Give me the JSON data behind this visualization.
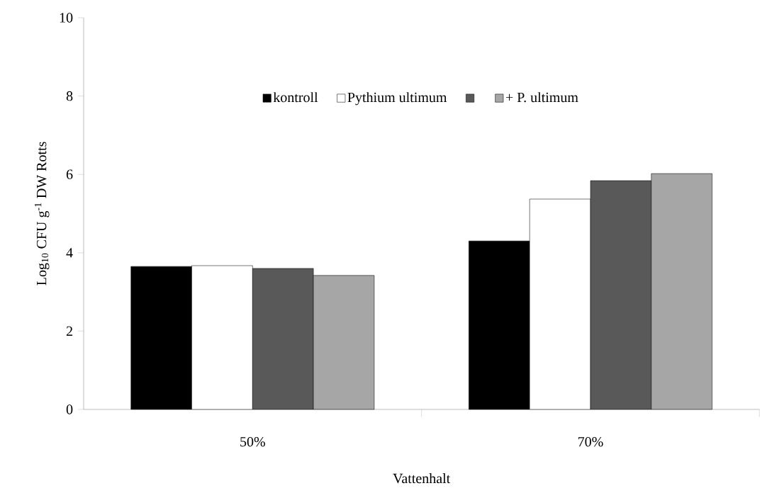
{
  "chart_data": {
    "type": "bar",
    "xlabel": "Vattenhalt",
    "ylabel": "Log$_{10}$ CFU g$^{-1}$ DW Rotts",
    "categories": [
      "50%",
      "70%"
    ],
    "series": [
      {
        "name": "kontroll",
        "color": "#000000",
        "values": [
          3.65,
          4.3
        ]
      },
      {
        "name": "Pythium ultimum",
        "color": "#ffffff",
        "values": [
          3.67,
          5.37
        ]
      },
      {
        "color": "#595959",
        "values": [
          3.6,
          5.84
        ]
      },
      {
        "name": "+ P. ultimum",
        "color": "#a6a6a6",
        "values": [
          3.42,
          6.02
        ]
      }
    ],
    "ylim": [
      0,
      10
    ],
    "yticks": [
      0,
      2,
      4,
      6,
      8,
      10
    ],
    "legend": "top",
    "grid": false
  }
}
